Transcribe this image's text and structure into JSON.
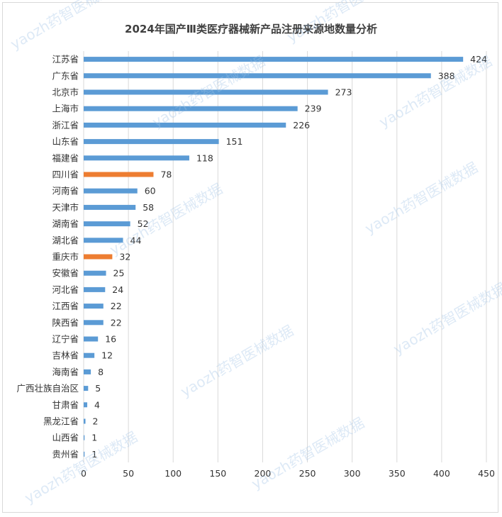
{
  "chart_data": {
    "type": "bar",
    "orientation": "horizontal",
    "title": "2024年国产Ⅲ类医疗器械新产品注册来源地数量分析",
    "categories": [
      "江苏省",
      "广东省",
      "北京市",
      "上海市",
      "浙江省",
      "山东省",
      "福建省",
      "四川省",
      "河南省",
      "天津市",
      "湖南省",
      "湖北省",
      "重庆市",
      "安徽省",
      "河北省",
      "江西省",
      "陕西省",
      "辽宁省",
      "吉林省",
      "海南省",
      "广西壮族自治区",
      "甘肃省",
      "黑龙江省",
      "山西省",
      "贵州省"
    ],
    "values": [
      424,
      388,
      273,
      239,
      226,
      151,
      118,
      78,
      60,
      58,
      52,
      44,
      32,
      25,
      24,
      22,
      22,
      16,
      12,
      8,
      5,
      4,
      2,
      1,
      1
    ],
    "highlighted": [
      "四川省",
      "重庆市"
    ],
    "xlim": [
      0,
      450
    ],
    "xticks": [
      0,
      50,
      100,
      150,
      200,
      250,
      300,
      350,
      400,
      450
    ],
    "grid": "vertical",
    "legend": "none",
    "colors": {
      "bar": "#5b9bd5",
      "highlight": "#ed7d31",
      "grid": "#d9d9d9"
    }
  },
  "watermark": "yaozh药智医械数据"
}
